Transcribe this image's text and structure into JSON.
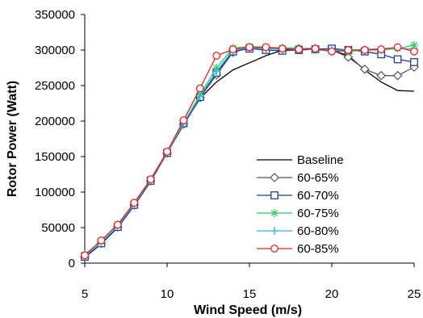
{
  "chart_data": {
    "type": "line",
    "xlabel": "Wind Speed (m/s)",
    "ylabel": "Rotor Power (Watt)",
    "xlim": [
      5,
      25
    ],
    "ylim": [
      0,
      350000
    ],
    "xticks": [
      "5",
      "10",
      "15",
      "20",
      "25"
    ],
    "yticks": [
      "0",
      "50000",
      "100000",
      "150000",
      "200000",
      "250000",
      "300000",
      "350000"
    ],
    "grid": false,
    "legend_position": "center-right",
    "x": [
      5,
      6,
      7,
      8,
      9,
      10,
      11,
      12,
      13,
      14,
      15,
      16,
      17,
      18,
      19,
      20,
      21,
      22,
      23,
      24,
      25
    ],
    "series": [
      {
        "name": "Baseline",
        "color": "#000000",
        "marker": "none",
        "values": [
          8000,
          27000,
          50000,
          81000,
          115000,
          155000,
          195000,
          232000,
          255000,
          272000,
          282000,
          292000,
          300000,
          302000,
          302000,
          300000,
          292000,
          272000,
          255000,
          243000,
          242000
        ]
      },
      {
        "name": "60-65%",
        "color": "#555555",
        "marker": "diamond",
        "values": [
          9000,
          28000,
          51000,
          82000,
          116000,
          155000,
          196000,
          233000,
          265000,
          297000,
          303000,
          302000,
          302000,
          302000,
          302000,
          300000,
          290000,
          273000,
          264000,
          264000,
          276000
        ]
      },
      {
        "name": "60-70%",
        "color": "#1f3f8f",
        "marker": "square",
        "values": [
          9000,
          28000,
          51000,
          82000,
          116000,
          155000,
          197000,
          234000,
          268000,
          298000,
          302000,
          300000,
          299000,
          300000,
          301000,
          302000,
          300000,
          298000,
          294000,
          287000,
          283000
        ]
      },
      {
        "name": "60-75%",
        "color": "#33cc66",
        "marker": "asterisk",
        "values": [
          12000,
          31000,
          55000,
          84000,
          118000,
          157000,
          198000,
          237000,
          275000,
          303000,
          305000,
          304000,
          303000,
          303000,
          300000,
          299000,
          298000,
          300000,
          300000,
          302000,
          307000
        ]
      },
      {
        "name": "60-80%",
        "color": "#33b3e6",
        "marker": "plus",
        "values": [
          10000,
          29000,
          52000,
          83000,
          117000,
          156000,
          197000,
          235000,
          270000,
          300000,
          303000,
          302000,
          301000,
          302000,
          301000,
          300000,
          300000,
          301000,
          302000,
          303000,
          301000
        ]
      },
      {
        "name": "60-85%",
        "color": "#ee2222",
        "marker": "circle",
        "values": [
          11000,
          32000,
          54000,
          85000,
          118000,
          157000,
          201000,
          246000,
          292000,
          301000,
          304000,
          304000,
          302000,
          301000,
          302000,
          298000,
          300000,
          300000,
          301000,
          304000,
          298000
        ]
      }
    ]
  }
}
